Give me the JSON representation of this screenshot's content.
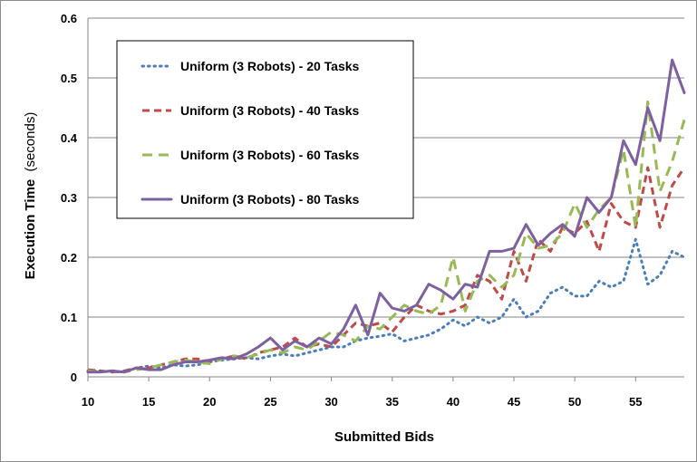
{
  "chart_data": {
    "type": "line",
    "title": "",
    "xlabel": "Submitted Bids",
    "ylabel_main": "Execution Time",
    "ylabel_unit": "(seconds)",
    "xlim": [
      10,
      59
    ],
    "ylim": [
      0,
      0.6
    ],
    "x_ticks": [
      "10",
      "15",
      "20",
      "25",
      "30",
      "35",
      "40",
      "45",
      "50",
      "55"
    ],
    "y_ticks": [
      "0",
      "0.1",
      "0.2",
      "0.3",
      "0.4",
      "0.5",
      "0.6"
    ],
    "grid": "horizontal",
    "legend_position": "top-left",
    "x": [
      10,
      11,
      12,
      13,
      14,
      15,
      16,
      17,
      18,
      19,
      20,
      21,
      22,
      23,
      24,
      25,
      26,
      27,
      28,
      29,
      30,
      31,
      32,
      33,
      34,
      35,
      36,
      37,
      38,
      39,
      40,
      41,
      42,
      43,
      44,
      45,
      46,
      47,
      48,
      49,
      50,
      51,
      52,
      53,
      54,
      55,
      56,
      57,
      58,
      59
    ],
    "series": [
      {
        "name": "Uniform (3 Robots) - 20 Tasks",
        "color": "#4a7ebb",
        "style": "dotted",
        "values": [
          0.01,
          0.01,
          0.008,
          0.009,
          0.015,
          0.018,
          0.015,
          0.02,
          0.018,
          0.02,
          0.025,
          0.028,
          0.03,
          0.032,
          0.03,
          0.035,
          0.038,
          0.035,
          0.04,
          0.045,
          0.05,
          0.05,
          0.06,
          0.065,
          0.068,
          0.072,
          0.06,
          0.065,
          0.07,
          0.08,
          0.095,
          0.085,
          0.1,
          0.09,
          0.1,
          0.13,
          0.1,
          0.11,
          0.14,
          0.15,
          0.135,
          0.135,
          0.16,
          0.15,
          0.16,
          0.23,
          0.155,
          0.17,
          0.21,
          0.2
        ]
      },
      {
        "name": "Uniform (3 Robots) - 40 Tasks",
        "color": "#be4b48",
        "style": "dashed",
        "values": [
          0.012,
          0.01,
          0.008,
          0.01,
          0.015,
          0.015,
          0.02,
          0.025,
          0.03,
          0.03,
          0.025,
          0.03,
          0.035,
          0.03,
          0.04,
          0.045,
          0.05,
          0.065,
          0.05,
          0.055,
          0.05,
          0.07,
          0.09,
          0.085,
          0.09,
          0.075,
          0.1,
          0.12,
          0.11,
          0.105,
          0.11,
          0.12,
          0.17,
          0.16,
          0.13,
          0.21,
          0.16,
          0.23,
          0.21,
          0.25,
          0.24,
          0.26,
          0.21,
          0.29,
          0.26,
          0.25,
          0.35,
          0.25,
          0.32,
          0.35
        ]
      },
      {
        "name": "Uniform (3 Robots) - 60 Tasks",
        "color": "#98b954",
        "style": "dashed",
        "values": [
          0.01,
          0.008,
          0.01,
          0.008,
          0.012,
          0.015,
          0.02,
          0.025,
          0.028,
          0.025,
          0.022,
          0.03,
          0.035,
          0.032,
          0.038,
          0.045,
          0.04,
          0.05,
          0.045,
          0.06,
          0.075,
          0.07,
          0.06,
          0.085,
          0.08,
          0.1,
          0.12,
          0.11,
          0.105,
          0.12,
          0.2,
          0.11,
          0.16,
          0.17,
          0.15,
          0.17,
          0.24,
          0.215,
          0.22,
          0.24,
          0.29,
          0.25,
          0.28,
          0.3,
          0.38,
          0.25,
          0.46,
          0.31,
          0.36,
          0.43
        ]
      },
      {
        "name": "Uniform (3 Robots) - 80 Tasks",
        "color": "#7d60a0",
        "style": "solid",
        "values": [
          0.008,
          0.008,
          0.01,
          0.008,
          0.015,
          0.012,
          0.012,
          0.02,
          0.025,
          0.025,
          0.028,
          0.032,
          0.03,
          0.038,
          0.05,
          0.065,
          0.045,
          0.06,
          0.05,
          0.065,
          0.055,
          0.08,
          0.12,
          0.07,
          0.14,
          0.115,
          0.11,
          0.12,
          0.155,
          0.145,
          0.13,
          0.155,
          0.15,
          0.21,
          0.21,
          0.215,
          0.255,
          0.22,
          0.24,
          0.255,
          0.235,
          0.3,
          0.275,
          0.3,
          0.395,
          0.355,
          0.45,
          0.395,
          0.53,
          0.475
        ]
      }
    ]
  }
}
